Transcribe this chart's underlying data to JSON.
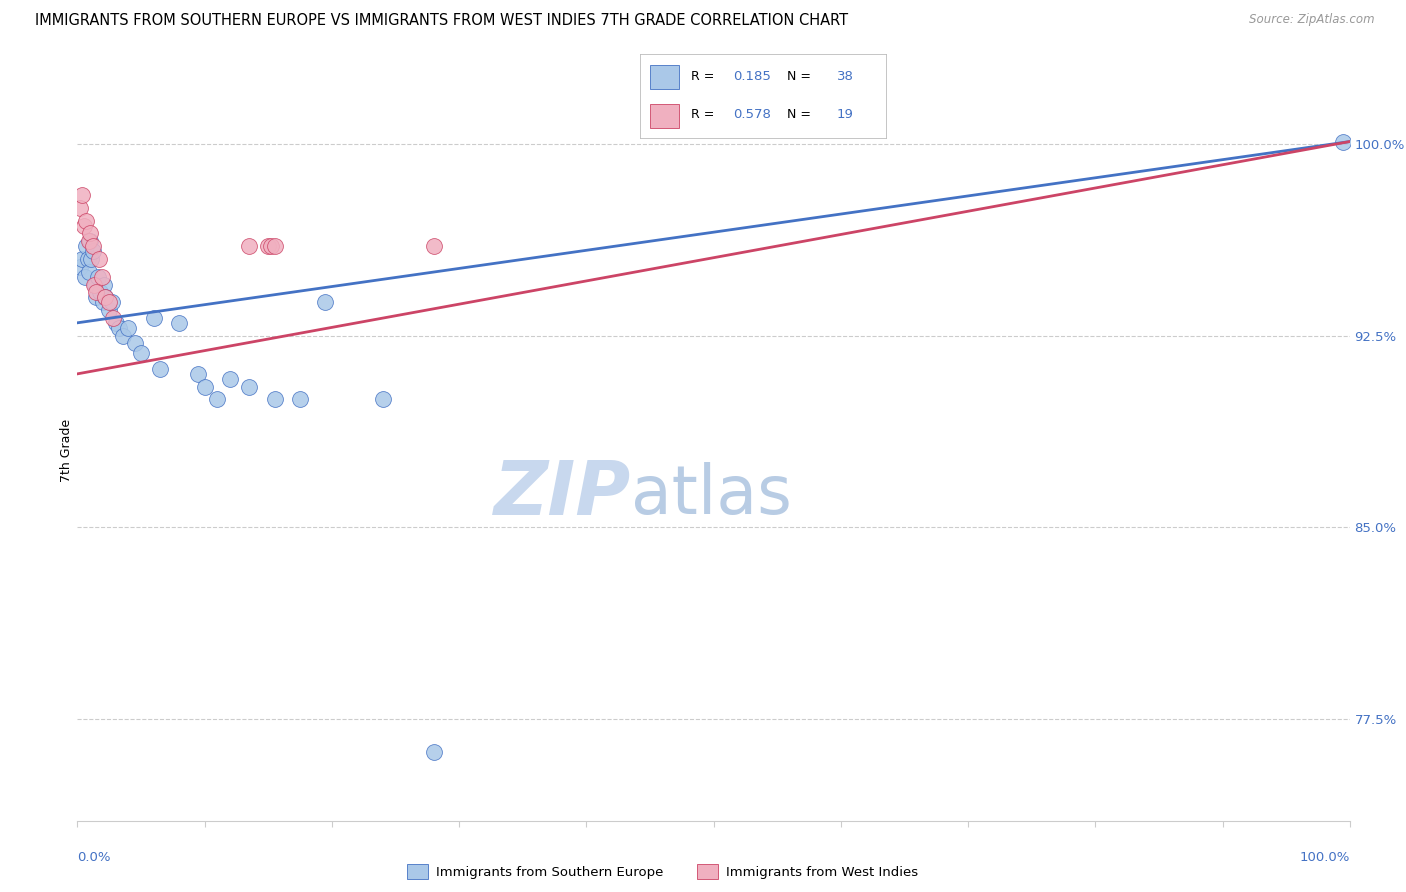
{
  "title": "IMMIGRANTS FROM SOUTHERN EUROPE VS IMMIGRANTS FROM WEST INDIES 7TH GRADE CORRELATION CHART",
  "source": "Source: ZipAtlas.com",
  "ylabel": "7th Grade",
  "xlabel_bottom_blue": "Immigrants from Southern Europe",
  "xlabel_bottom_pink": "Immigrants from West Indies",
  "ytick_labels": [
    "77.5%",
    "85.0%",
    "92.5%",
    "100.0%"
  ],
  "ytick_values": [
    0.775,
    0.85,
    0.925,
    1.0
  ],
  "xlim": [
    0.0,
    1.0
  ],
  "ylim": [
    0.735,
    1.025
  ],
  "blue_R": "0.185",
  "blue_N": "38",
  "pink_R": "0.578",
  "pink_N": "19",
  "blue_fill": "#aac8e8",
  "pink_fill": "#f0b0c0",
  "blue_edge": "#4472c4",
  "pink_edge": "#cc4466",
  "blue_line_color": "#4472c4",
  "pink_line_color": "#cc4466",
  "right_label_color": "#4472c4",
  "grid_color": "#cccccc",
  "watermark_zip_color": "#c8d8ee",
  "watermark_atlas_color": "#b8cce4",
  "blue_line_x": [
    0.0,
    1.0
  ],
  "blue_line_y": [
    0.93,
    1.001
  ],
  "pink_line_x": [
    0.0,
    1.0
  ],
  "pink_line_y": [
    0.91,
    1.001
  ],
  "blue_x": [
    0.002,
    0.004,
    0.006,
    0.007,
    0.008,
    0.009,
    0.01,
    0.011,
    0.012,
    0.014,
    0.015,
    0.016,
    0.018,
    0.02,
    0.021,
    0.022,
    0.025,
    0.027,
    0.03,
    0.033,
    0.036,
    0.04,
    0.045,
    0.05,
    0.06,
    0.065,
    0.08,
    0.095,
    0.1,
    0.11,
    0.12,
    0.135,
    0.155,
    0.175,
    0.195,
    0.24,
    0.28,
    0.995
  ],
  "blue_y": [
    0.952,
    0.955,
    0.948,
    0.96,
    0.955,
    0.95,
    0.962,
    0.955,
    0.958,
    0.945,
    0.94,
    0.948,
    0.942,
    0.938,
    0.945,
    0.94,
    0.935,
    0.938,
    0.93,
    0.928,
    0.925,
    0.928,
    0.922,
    0.918,
    0.932,
    0.912,
    0.93,
    0.91,
    0.905,
    0.9,
    0.908,
    0.905,
    0.9,
    0.9,
    0.938,
    0.9,
    0.762,
    1.001
  ],
  "pink_x": [
    0.002,
    0.004,
    0.005,
    0.007,
    0.009,
    0.01,
    0.012,
    0.013,
    0.015,
    0.017,
    0.019,
    0.022,
    0.025,
    0.028,
    0.135,
    0.15,
    0.152,
    0.155,
    0.28
  ],
  "pink_y": [
    0.975,
    0.98,
    0.968,
    0.97,
    0.962,
    0.965,
    0.96,
    0.945,
    0.942,
    0.955,
    0.948,
    0.94,
    0.938,
    0.932,
    0.96,
    0.96,
    0.96,
    0.96,
    0.96
  ]
}
